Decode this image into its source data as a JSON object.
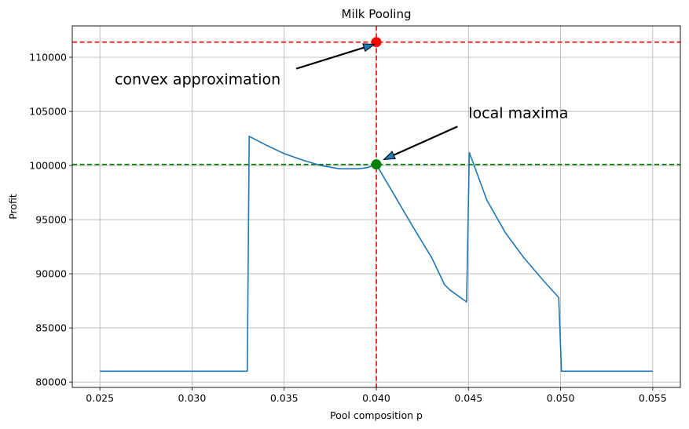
{
  "chart_data": {
    "type": "line",
    "title": "Milk Pooling",
    "xlabel": "Pool composition p",
    "ylabel": "Profit",
    "xlim": [
      0.0235,
      0.0565
    ],
    "ylim": [
      79500,
      112900
    ],
    "grid": true,
    "x_ticks": [
      0.025,
      0.03,
      0.035,
      0.04,
      0.045,
      0.05,
      0.055
    ],
    "x_tick_labels": [
      "0.025",
      "0.030",
      "0.035",
      "0.040",
      "0.045",
      "0.050",
      "0.055"
    ],
    "y_ticks": [
      80000,
      85000,
      90000,
      95000,
      100000,
      105000,
      110000
    ],
    "y_tick_labels": [
      "80000",
      "85000",
      "90000",
      "95000",
      "100000",
      "105000",
      "110000"
    ],
    "series": [
      {
        "color": "#1f77b4",
        "x": [
          0.025,
          0.033,
          0.0331,
          0.034,
          0.035,
          0.036,
          0.037,
          0.038,
          0.039,
          0.0395,
          0.04,
          0.041,
          0.042,
          0.043,
          0.0437,
          0.044,
          0.0449,
          0.04505,
          0.046,
          0.047,
          0.048,
          0.049,
          0.0499,
          0.05005,
          0.051,
          0.055
        ],
        "y": [
          81000,
          81000,
          102700,
          101900,
          101100,
          100500,
          100000,
          99700,
          99700,
          99800,
          100100,
          97200,
          94300,
          91500,
          89000,
          88500,
          87400,
          101200,
          96800,
          93800,
          91500,
          89500,
          87800,
          81000,
          81000,
          81000
        ]
      }
    ],
    "reference_lines": [
      {
        "orientation": "horizontal",
        "value": 111400,
        "color": "#ff0000",
        "style": "dashed"
      },
      {
        "orientation": "horizontal",
        "value": 100100,
        "color": "#008000",
        "style": "dashed"
      },
      {
        "orientation": "vertical",
        "value": 0.04,
        "color": "#ff0000",
        "style": "dashed"
      }
    ],
    "points": [
      {
        "x": 0.04,
        "y": 111400,
        "color": "#ff0000"
      },
      {
        "x": 0.04,
        "y": 100100,
        "color": "#008000"
      }
    ],
    "annotations": [
      {
        "text": "convex approximation",
        "xy": [
          0.0399,
          111200
        ],
        "xytext": [
          0.0258,
          108000
        ]
      },
      {
        "text": "local maxima",
        "xy": [
          0.0404,
          100550
        ],
        "xytext": [
          0.045,
          104900
        ]
      }
    ]
  }
}
